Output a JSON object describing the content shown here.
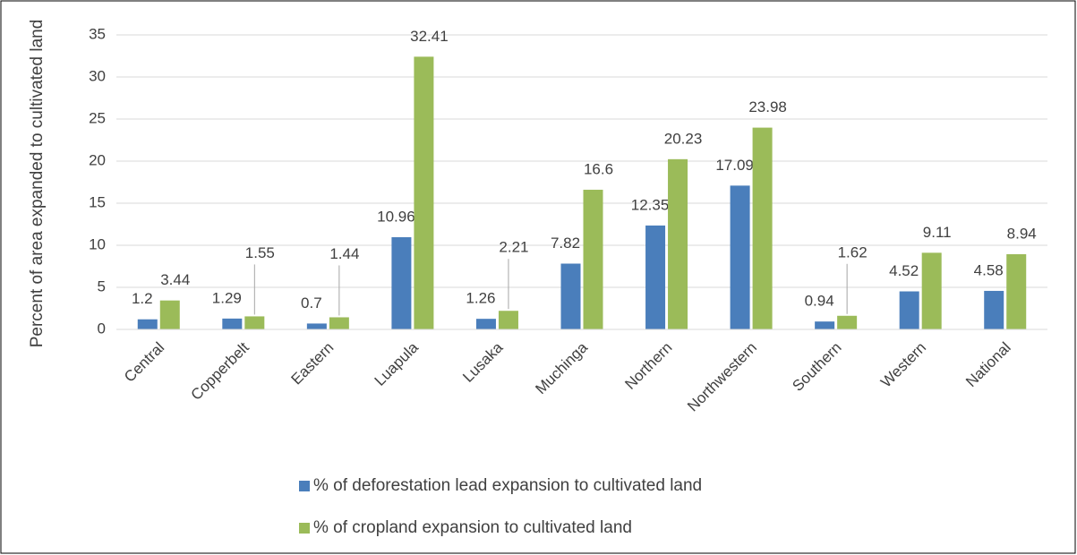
{
  "chart_data": {
    "type": "bar",
    "y_axis_label": "Percent of area expanded to cultivated land",
    "categories": [
      "Central",
      "Copperbelt",
      "Eastern",
      "Luapula",
      "Lusaka",
      "Muchinga",
      "Northern",
      "Northwestern",
      "Southern",
      "Western",
      "National"
    ],
    "series": [
      {
        "name": "% of deforestation lead expansion to cultivated land",
        "color": "#4a7ebb",
        "values": [
          1.2,
          1.29,
          0.7,
          10.96,
          1.26,
          7.82,
          12.35,
          17.09,
          0.94,
          4.52,
          4.58
        ]
      },
      {
        "name": "% of cropland expansion to cultivated land",
        "color": "#9bbb59",
        "values": [
          3.44,
          1.55,
          1.44,
          32.41,
          2.21,
          16.6,
          20.23,
          23.98,
          1.62,
          9.11,
          8.94
        ]
      }
    ],
    "ylim": [
      0,
      35
    ],
    "yticks": [
      0,
      5,
      10,
      15,
      20,
      25,
      30,
      35
    ],
    "grid": true,
    "legend": "bottom"
  }
}
